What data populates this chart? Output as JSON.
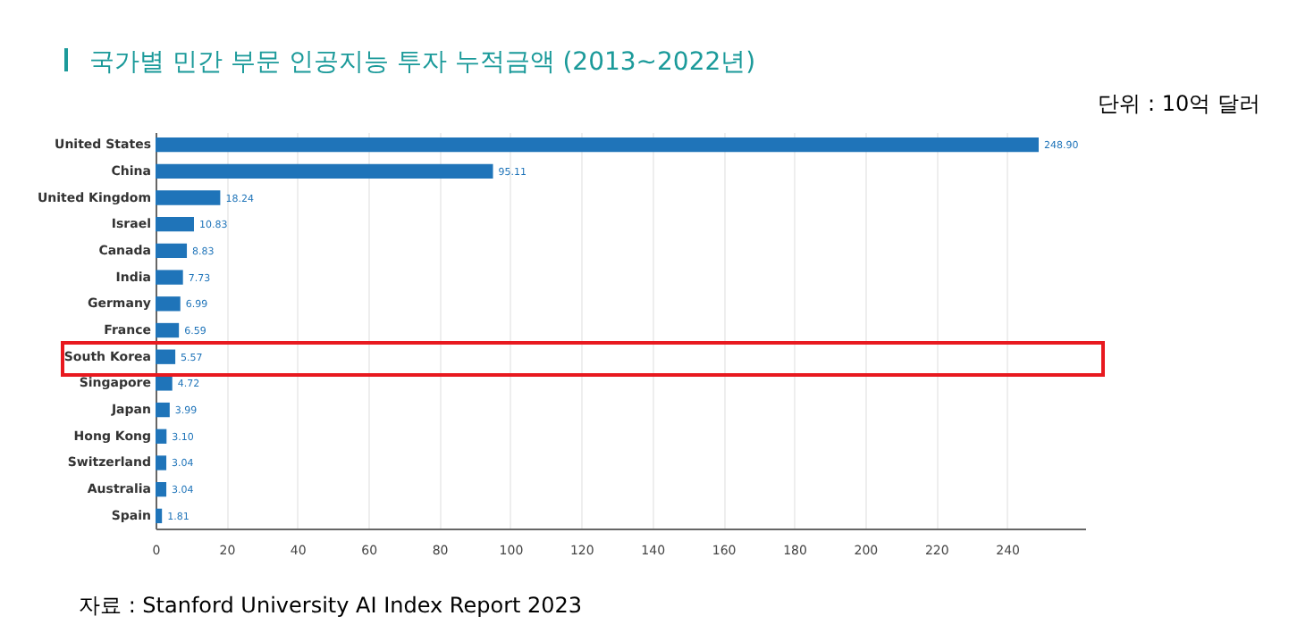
{
  "chart_data": {
    "type": "bar",
    "orientation": "horizontal",
    "title": "국가별 민간 부문 인공지능 투자 누적금액 (2013~2022년)",
    "annotations": [
      "단위 : 10억 달러",
      "자료 : Stanford University AI Index Report 2023"
    ],
    "categories": [
      "United States",
      "China",
      "United Kingdom",
      "Israel",
      "Canada",
      "India",
      "Germany",
      "France",
      "South Korea",
      "Singapore",
      "Japan",
      "Hong Kong",
      "Switzerland",
      "Australia",
      "Spain"
    ],
    "values": [
      248.9,
      95.11,
      18.24,
      10.83,
      8.83,
      7.73,
      6.99,
      6.59,
      5.57,
      4.72,
      3.99,
      3.1,
      3.04,
      3.04,
      1.81
    ],
    "value_labels": [
      "248.90",
      "95.11",
      "18.24",
      "10.83",
      "8.83",
      "7.73",
      "6.99",
      "6.59",
      "5.57",
      "4.72",
      "3.99",
      "3.10",
      "3.04",
      "3.04",
      "1.81"
    ],
    "color": "#1f74b9",
    "xlim": [
      0,
      262
    ],
    "xticks": [
      0,
      20,
      40,
      60,
      80,
      100,
      120,
      140,
      160,
      180,
      200,
      220,
      240
    ],
    "grid": "x"
  }
}
